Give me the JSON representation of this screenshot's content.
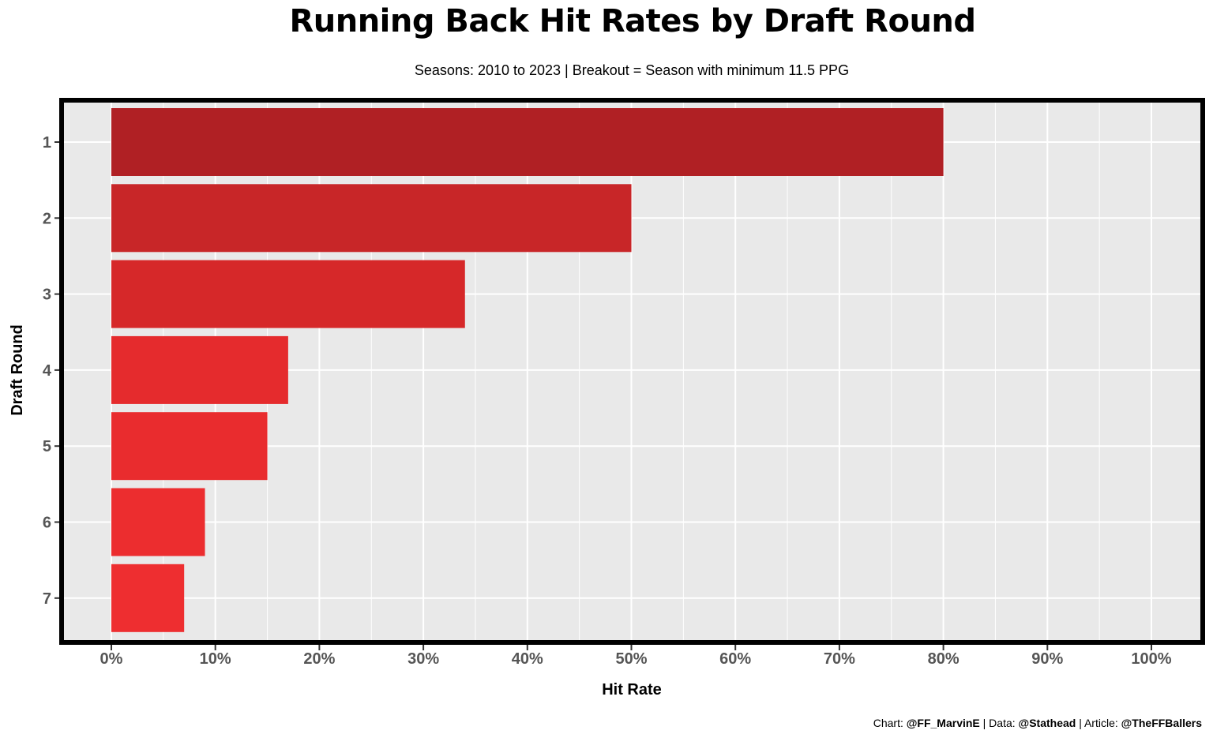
{
  "chart_data": {
    "type": "bar",
    "orientation": "horizontal",
    "title": "Running Back Hit Rates by Draft Round",
    "subtitle": "Seasons: 2010 to 2023 | Breakout = Season with minimum 11.5 PPG",
    "xlabel": "Hit Rate",
    "ylabel": "Draft Round",
    "categories": [
      "1",
      "2",
      "3",
      "4",
      "5",
      "6",
      "7"
    ],
    "values": [
      80,
      50,
      34,
      17,
      15,
      9,
      7
    ],
    "bar_colors": [
      "#b02024",
      "#c82628",
      "#d62829",
      "#e52b2d",
      "#e92c2e",
      "#ec2d2f",
      "#ee2e30"
    ],
    "xlim": [
      0,
      100
    ],
    "xticks": [
      "0%",
      "10%",
      "20%",
      "30%",
      "40%",
      "50%",
      "60%",
      "70%",
      "80%",
      "90%",
      "100%"
    ],
    "grid": true,
    "legend": "none",
    "panel_background": "#e9e9e9"
  },
  "caption": {
    "chart_prefix": "Chart: ",
    "chart_handle": "@FF_MarvinE",
    "data_prefix": " | Data: ",
    "data_handle": "@Stathead",
    "article_prefix": " | Article: ",
    "article_handle": "@TheFFBallers"
  }
}
